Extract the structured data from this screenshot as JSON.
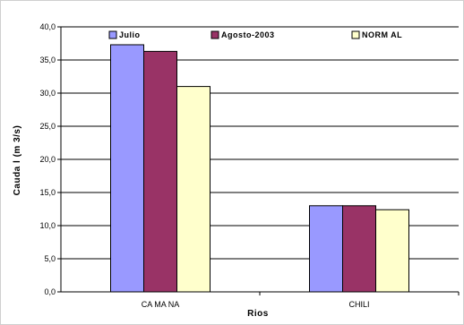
{
  "chart_data": {
    "type": "bar",
    "categories": [
      "CA MA NA",
      "CHILI"
    ],
    "series": [
      {
        "name": "Julio",
        "values": [
          37.3,
          13.0
        ],
        "color": "#9999ff"
      },
      {
        "name": "Agosto-2003",
        "values": [
          36.3,
          13.0
        ],
        "color": "#993366"
      },
      {
        "name": "NORM AL",
        "values": [
          31.0,
          12.4
        ],
        "color": "#ffffcc"
      }
    ],
    "y_ticks": [
      "0,0",
      "5,0",
      "10,0",
      "15,0",
      "20,0",
      "25,0",
      "30,0",
      "35,0",
      "40,0"
    ],
    "xlabel": "Rios",
    "ylabel": "Cauda l (m 3/s)",
    "ylim": [
      0,
      40
    ],
    "grid": true,
    "legend_position": "top"
  }
}
